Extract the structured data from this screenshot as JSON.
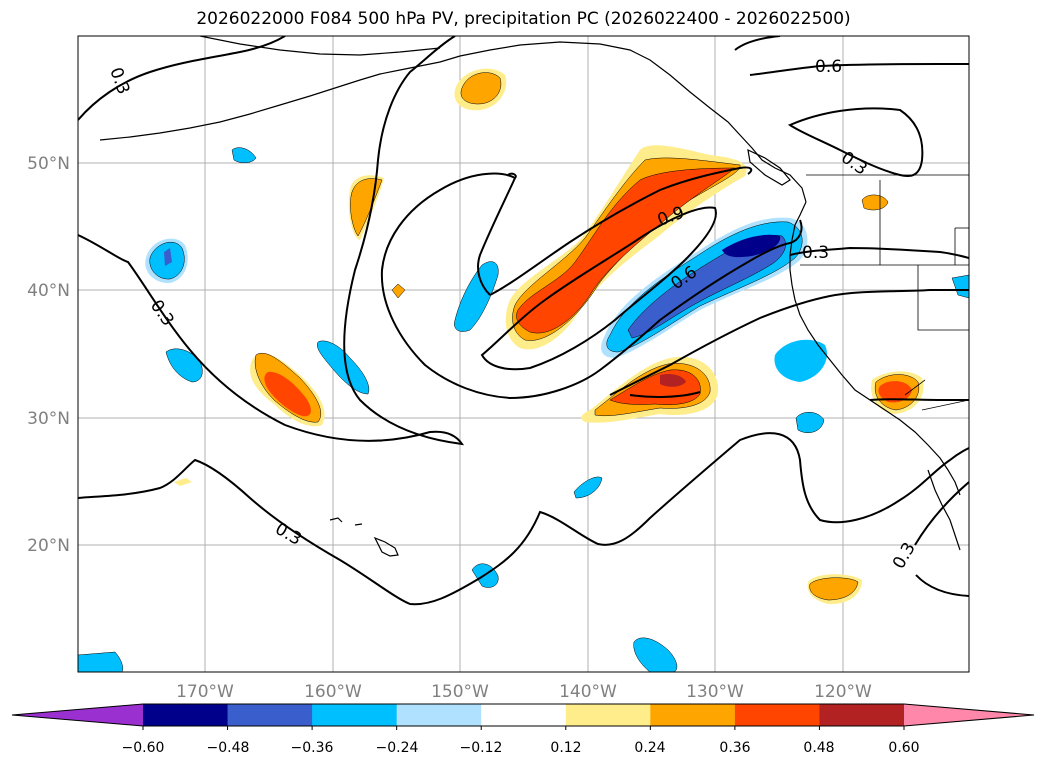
{
  "title": "2026022000 F084 500 hPa PV, precipitation PC (2026022400 - 2026022500)",
  "lat_labels": [
    "50°N",
    "40°N",
    "30°N",
    "20°N"
  ],
  "lon_labels": [
    "170°W",
    "160°W",
    "150°W",
    "140°W",
    "130°W",
    "120°W"
  ],
  "contour_labels": [
    "0.3",
    "0.6",
    "0.3",
    "0.9",
    "0.6",
    "0.3",
    "0.3",
    "0.3",
    "0.3"
  ],
  "colorbar": {
    "ticks": [
      "−0.60",
      "−0.48",
      "−0.36",
      "−0.24",
      "−0.12",
      "0.12",
      "0.24",
      "0.36",
      "0.48",
      "0.60"
    ],
    "colors": [
      "#9b30d0",
      "#00008b",
      "#3a5fcd",
      "#00bfff",
      "#b0e2ff",
      "#ffffff",
      "#ffec8b",
      "#ffa500",
      "#ff4500",
      "#b22222",
      "#ff88aa"
    ]
  }
}
